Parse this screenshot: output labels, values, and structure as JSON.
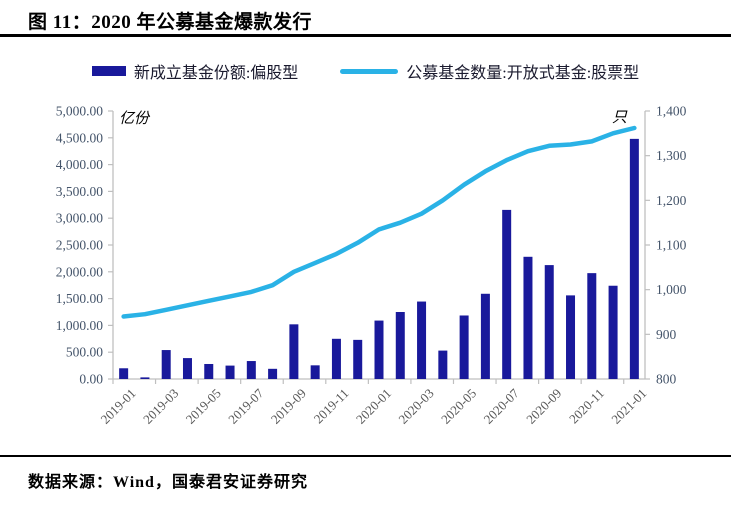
{
  "header": {
    "title": "图 11：2020 年公募基金爆款发行"
  },
  "legend": {
    "items": [
      {
        "label": "新成立基金份额:偏股型",
        "marker": "bar-swatch",
        "color": "#19199B"
      },
      {
        "label": "公募基金数量:开放式基金:股票型",
        "marker": "line-swatch",
        "color": "#2AB2E6"
      }
    ]
  },
  "chart_data": {
    "type": "combo-bar-line",
    "categories": [
      "2019-01",
      "2019-02",
      "2019-03",
      "2019-04",
      "2019-05",
      "2019-06",
      "2019-07",
      "2019-08",
      "2019-09",
      "2019-10",
      "2019-11",
      "2019-12",
      "2020-01",
      "2020-02",
      "2020-03",
      "2020-04",
      "2020-05",
      "2020-06",
      "2020-07",
      "2020-08",
      "2020-09",
      "2020-10",
      "2020-11",
      "2020-12",
      "2021-01"
    ],
    "x_axis": {
      "shown_tick_labels": [
        "2019-01",
        "2019-03",
        "2019-05",
        "2019-07",
        "2019-09",
        "2019-11",
        "2020-01",
        "2020-03",
        "2020-05",
        "2020-07",
        "2020-09",
        "2020-11",
        "2021-01"
      ],
      "label_interval_months": 2,
      "label_rotation_deg": 45,
      "label_color": "#595959"
    },
    "series": [
      {
        "name": "新成立基金份额:偏股型",
        "type": "bar",
        "axis": "left",
        "color": "#19199B",
        "values": [
          200,
          30,
          540,
          390,
          280,
          250,
          335,
          190,
          1020,
          255,
          750,
          730,
          1090,
          1250,
          1445,
          530,
          1185,
          1590,
          3155,
          2280,
          2125,
          1560,
          1975,
          1740,
          4480
        ]
      },
      {
        "name": "公募基金数量:开放式基金:股票型",
        "type": "line",
        "axis": "right",
        "color": "#2AB2E6",
        "values": [
          940,
          945,
          955,
          965,
          975,
          985,
          995,
          1010,
          1040,
          1060,
          1080,
          1105,
          1135,
          1150,
          1170,
          1200,
          1235,
          1265,
          1290,
          1310,
          1322,
          1325,
          1332,
          1350,
          1362
        ]
      }
    ],
    "left_axis": {
      "unit": "亿份",
      "min": 0,
      "max": 5000,
      "step": 500,
      "tick_labels": [
        "0.00",
        "500.00",
        "1,000.00",
        "1,500.00",
        "2,000.00",
        "2,500.00",
        "3,000.00",
        "3,500.00",
        "4,000.00",
        "4,500.00",
        "5,000.00"
      ],
      "tick_color": "#44546A"
    },
    "right_axis": {
      "unit": "只",
      "min": 800,
      "max": 1400,
      "step": 100,
      "tick_labels": [
        "800",
        "900",
        "1,000",
        "1,100",
        "1,200",
        "1,300",
        "1,400"
      ],
      "tick_color": "#44546A"
    },
    "grid": false,
    "legend_position": "top",
    "axis_line_color": "#BFBFBF"
  },
  "footer": {
    "source": "数据来源：Wind，国泰君安证券研究"
  }
}
